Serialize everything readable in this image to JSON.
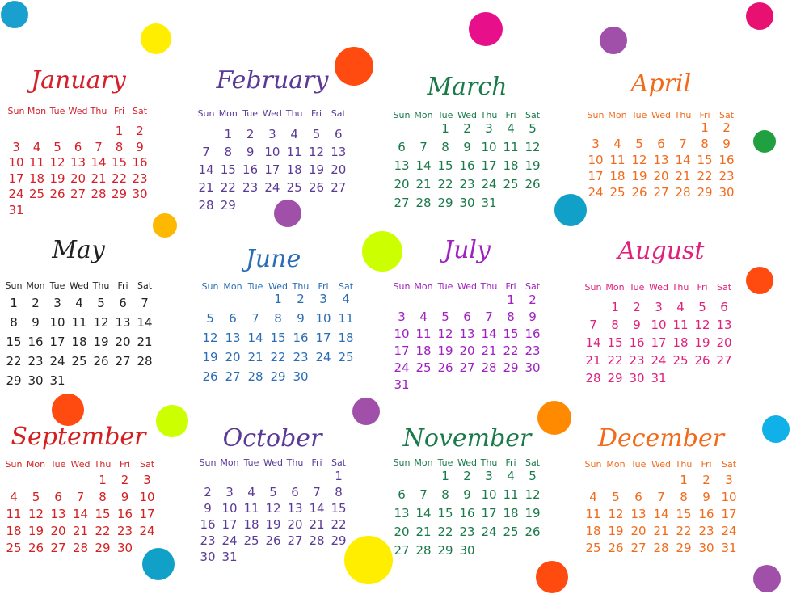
{
  "weekdays": [
    "Sun",
    "Mon",
    "Tue",
    "Wed",
    "Thu",
    "Fri",
    "Sat"
  ],
  "months": [
    {
      "name": "January",
      "color": "#d4202a",
      "first_weekday": "Fri",
      "days": 31
    },
    {
      "name": "February",
      "color": "#5b3a96",
      "first_weekday": "Mon",
      "days": 29
    },
    {
      "name": "March",
      "color": "#1a7a4a",
      "first_weekday": "Tue",
      "days": 31
    },
    {
      "name": "April",
      "color": "#f26a1b",
      "first_weekday": "Fri",
      "days": 30
    },
    {
      "name": "May",
      "color": "#222222",
      "first_weekday": "Sun",
      "days": 31
    },
    {
      "name": "June",
      "color": "#2a6db5",
      "first_weekday": "Wed",
      "days": 30
    },
    {
      "name": "July",
      "color": "#a020c0",
      "first_weekday": "Fri",
      "days": 31
    },
    {
      "name": "August",
      "color": "#e0207a",
      "first_weekday": "Mon",
      "days": 31
    },
    {
      "name": "September",
      "color": "#d42020",
      "first_weekday": "Thu",
      "days": 30
    },
    {
      "name": "October",
      "color": "#5b3a96",
      "first_weekday": "Sat",
      "days": 31
    },
    {
      "name": "November",
      "color": "#1a7a4a",
      "first_weekday": "Tue",
      "days": 30
    },
    {
      "name": "December",
      "color": "#f26a1b",
      "first_weekday": "Thu",
      "days": 31
    }
  ],
  "dot_colors": [
    "#1aa0cf",
    "#ffee00",
    "#ff4a10",
    "#e8108a",
    "#a050a8",
    "#e81070",
    "#20a040",
    "#ffb800",
    "#ccff00",
    "#10a0c8",
    "#ff8a00",
    "#10b0e8"
  ]
}
